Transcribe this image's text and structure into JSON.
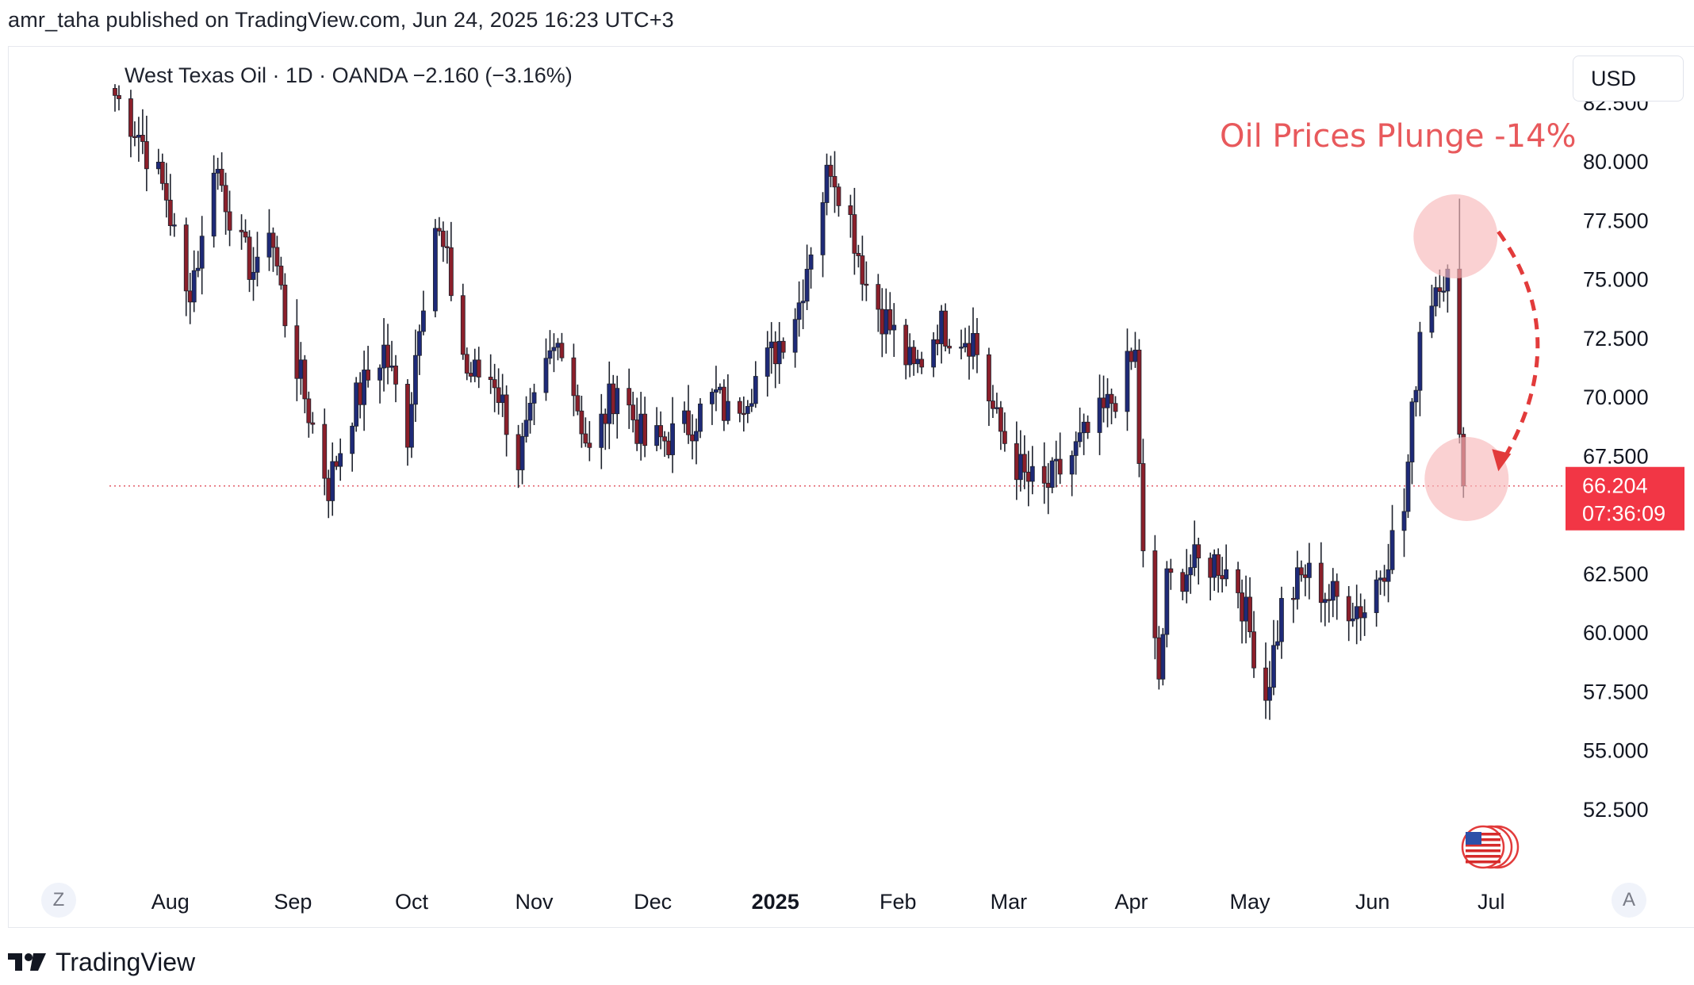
{
  "publisher_line": "amr_taha published on TradingView.com, Jun 24, 2025 16:23 UTC+3",
  "legend": "West Texas Oil · 1D · OANDA  −2.160 (−3.16%)",
  "currency_button": "USD",
  "corner_left": "Z",
  "corner_right": "A",
  "footer_brand": "TradingView",
  "annotation": "Oil Prices Plunge -14%",
  "price_label": {
    "price": "66.204",
    "countdown": "07:36:09"
  },
  "colors": {
    "up_candle": "#1e2a78",
    "down_candle": "#8b1f2a",
    "wick": "#1e222d",
    "annotation": "#e8595c",
    "highlight_circle": "#f7b8ba",
    "price_label_bg": "#f23645",
    "price_line": "#e25c68"
  },
  "icons": {
    "flag": "us-flag-icon",
    "logo": "tradingview-logo-icon"
  },
  "chart_data": {
    "type": "candlestick",
    "series_name": "West Texas Oil",
    "timeframe": "1D",
    "ylim": [
      52.5,
      84.0
    ],
    "y_ticks": [
      "82.500",
      "80.000",
      "77.500",
      "75.000",
      "72.500",
      "70.000",
      "67.500",
      "62.500",
      "60.000",
      "57.500",
      "55.000",
      "52.500"
    ],
    "x_ticks": [
      "Aug",
      "Sep",
      "Oct",
      "Nov",
      "Dec",
      "2025",
      "Feb",
      "Mar",
      "Apr",
      "May",
      "Jun",
      "Jul"
    ],
    "x_tick_dates": [
      "2024-08-01",
      "2024-09-01",
      "2024-10-01",
      "2024-11-01",
      "2024-12-01",
      "2025-01-01",
      "2025-02-01",
      "2025-03-01",
      "2025-04-01",
      "2025-05-01",
      "2025-06-01",
      "2025-07-01"
    ],
    "x_range": [
      "2024-07-17",
      "2025-07-16"
    ],
    "current_price": 66.204,
    "price_anchors": [
      [
        "2024-07-18",
        82.8
      ],
      [
        "2024-07-24",
        81.2
      ],
      [
        "2024-07-31",
        78.5
      ],
      [
        "2024-08-05",
        74.2
      ],
      [
        "2024-08-09",
        76.5
      ],
      [
        "2024-08-12",
        80.1
      ],
      [
        "2024-08-19",
        76.2
      ],
      [
        "2024-08-23",
        75.1
      ],
      [
        "2024-08-26",
        77.5
      ],
      [
        "2024-08-30",
        73.4
      ],
      [
        "2024-09-04",
        70.0
      ],
      [
        "2024-09-10",
        66.2
      ],
      [
        "2024-09-16",
        69.5
      ],
      [
        "2024-09-24",
        72.0
      ],
      [
        "2024-09-30",
        68.5
      ],
      [
        "2024-10-03",
        73.5
      ],
      [
        "2024-10-07",
        77.3
      ],
      [
        "2024-10-10",
        75.5
      ],
      [
        "2024-10-15",
        71.0
      ],
      [
        "2024-10-22",
        70.8
      ],
      [
        "2024-10-28",
        67.3
      ],
      [
        "2024-11-05",
        71.5
      ],
      [
        "2024-11-08",
        72.5
      ],
      [
        "2024-11-15",
        67.5
      ],
      [
        "2024-11-22",
        70.6
      ],
      [
        "2024-11-29",
        68.0
      ],
      [
        "2024-12-05",
        68.2
      ],
      [
        "2024-12-10",
        68.8
      ],
      [
        "2024-12-17",
        70.0
      ],
      [
        "2024-12-20",
        69.2
      ],
      [
        "2024-12-31",
        71.7
      ],
      [
        "2025-01-07",
        74.0
      ],
      [
        "2025-01-10",
        76.5
      ],
      [
        "2025-01-15",
        80.0
      ],
      [
        "2025-01-20",
        77.5
      ],
      [
        "2025-01-24",
        74.8
      ],
      [
        "2025-01-31",
        72.6
      ],
      [
        "2025-02-05",
        71.0
      ],
      [
        "2025-02-11",
        73.0
      ],
      [
        "2025-02-20",
        72.5
      ],
      [
        "2025-02-26",
        68.8
      ],
      [
        "2025-03-05",
        66.5
      ],
      [
        "2025-03-10",
        66.0
      ],
      [
        "2025-03-17",
        67.5
      ],
      [
        "2025-03-26",
        69.5
      ],
      [
        "2025-04-02",
        71.7
      ],
      [
        "2025-04-04",
        63.0
      ],
      [
        "2025-04-08",
        58.0
      ],
      [
        "2025-04-10",
        62.0
      ],
      [
        "2025-04-16",
        62.8
      ],
      [
        "2025-04-23",
        63.0
      ],
      [
        "2025-04-28",
        62.0
      ],
      [
        "2025-05-05",
        57.3
      ],
      [
        "2025-05-09",
        61.0
      ],
      [
        "2025-05-15",
        62.5
      ],
      [
        "2025-05-21",
        61.5
      ],
      [
        "2025-05-30",
        61.0
      ],
      [
        "2025-06-04",
        63.0
      ],
      [
        "2025-06-09",
        65.2
      ],
      [
        "2025-06-13",
        72.9
      ],
      [
        "2025-06-18",
        75.3
      ],
      [
        "2025-06-20",
        75.0
      ],
      [
        "2025-06-23",
        68.4
      ],
      [
        "2025-06-24",
        66.204
      ]
    ]
  }
}
